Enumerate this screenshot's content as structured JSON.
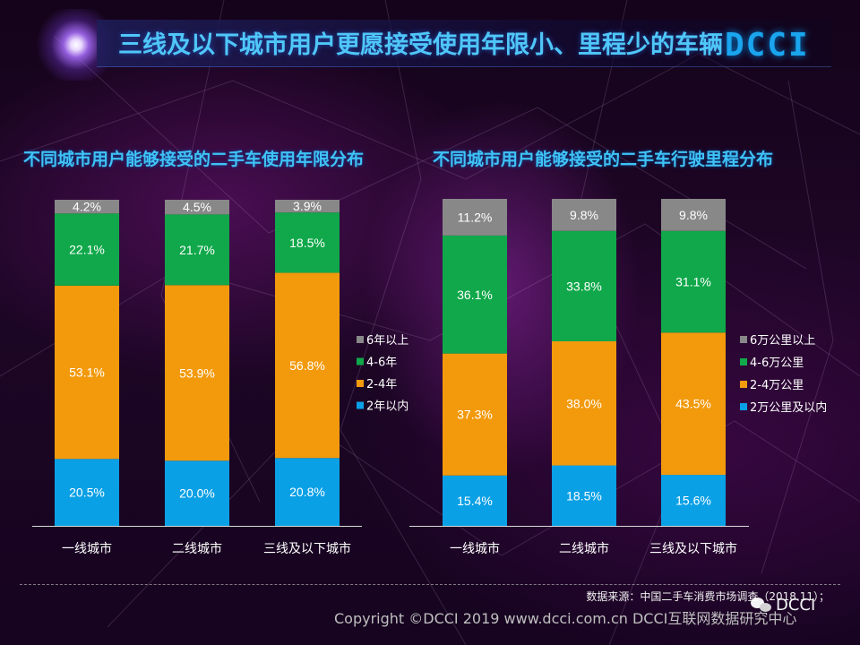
{
  "header": {
    "title": "三线及以下城市用户更愿接受使用年限小、里程少的车辆",
    "logo_text": "DCCI"
  },
  "chart_data": [
    {
      "type": "bar",
      "stacked": true,
      "title": "不同城市用户能够接受的二手车使用年限分布",
      "categories": [
        "一线城市",
        "二线城市",
        "三线及以下城市"
      ],
      "series": [
        {
          "name": "2年以内",
          "color": "#0aa0e6",
          "values": [
            20.5,
            20.0,
            20.8
          ],
          "labels": [
            "20.5%",
            "20.0%",
            "20.8%"
          ]
        },
        {
          "name": "2-4年",
          "color": "#f29a0c",
          "values": [
            53.1,
            53.9,
            56.8
          ],
          "labels": [
            "53.1%",
            "53.9%",
            "56.8%"
          ]
        },
        {
          "name": "4-6年",
          "color": "#10a84a",
          "values": [
            22.1,
            21.7,
            18.5
          ],
          "labels": [
            "22.1%",
            "21.7%",
            "18.5%"
          ]
        },
        {
          "name": "6年以上",
          "color": "#888888",
          "values": [
            4.2,
            4.5,
            3.9
          ],
          "labels": [
            "4.2%",
            "4.5%",
            "3.9%"
          ]
        }
      ],
      "ylim": [
        0,
        100
      ],
      "legend": [
        "6年以上",
        "4-6年",
        "2-4年",
        "2年以内"
      ]
    },
    {
      "type": "bar",
      "stacked": true,
      "title": "不同城市用户能够接受的二手车行驶里程分布",
      "categories": [
        "一线城市",
        "二线城市",
        "三线及以下城市"
      ],
      "series": [
        {
          "name": "2万公里及以内",
          "color": "#0aa0e6",
          "values": [
            15.4,
            18.5,
            15.6
          ],
          "labels": [
            "15.4%",
            "18.5%",
            "15.6%"
          ]
        },
        {
          "name": "2-4万公里",
          "color": "#f29a0c",
          "values": [
            37.3,
            38.0,
            43.5
          ],
          "labels": [
            "37.3%",
            "38.0%",
            "43.5%"
          ]
        },
        {
          "name": "4-6万公里",
          "color": "#10a84a",
          "values": [
            36.1,
            33.8,
            31.1
          ],
          "labels": [
            "36.1%",
            "33.8%",
            "31.1%"
          ]
        },
        {
          "name": "6万公里以上",
          "color": "#888888",
          "values": [
            11.2,
            9.8,
            9.8
          ],
          "labels": [
            "11.2%",
            "9.8%",
            "9.8%"
          ]
        }
      ],
      "ylim": [
        0,
        100
      ],
      "legend": [
        "6万公里以上",
        "4-6万公里",
        "2-4万公里",
        "2万公里及以内"
      ]
    }
  ],
  "footer": {
    "source": "数据来源：中国二手车消费市场调查（2018.11）；",
    "copyright": "Copyright ©DCCI 2019  www.dcci.com.cn   DCCI互联网数据研究中心",
    "watermark": "DCCI"
  }
}
